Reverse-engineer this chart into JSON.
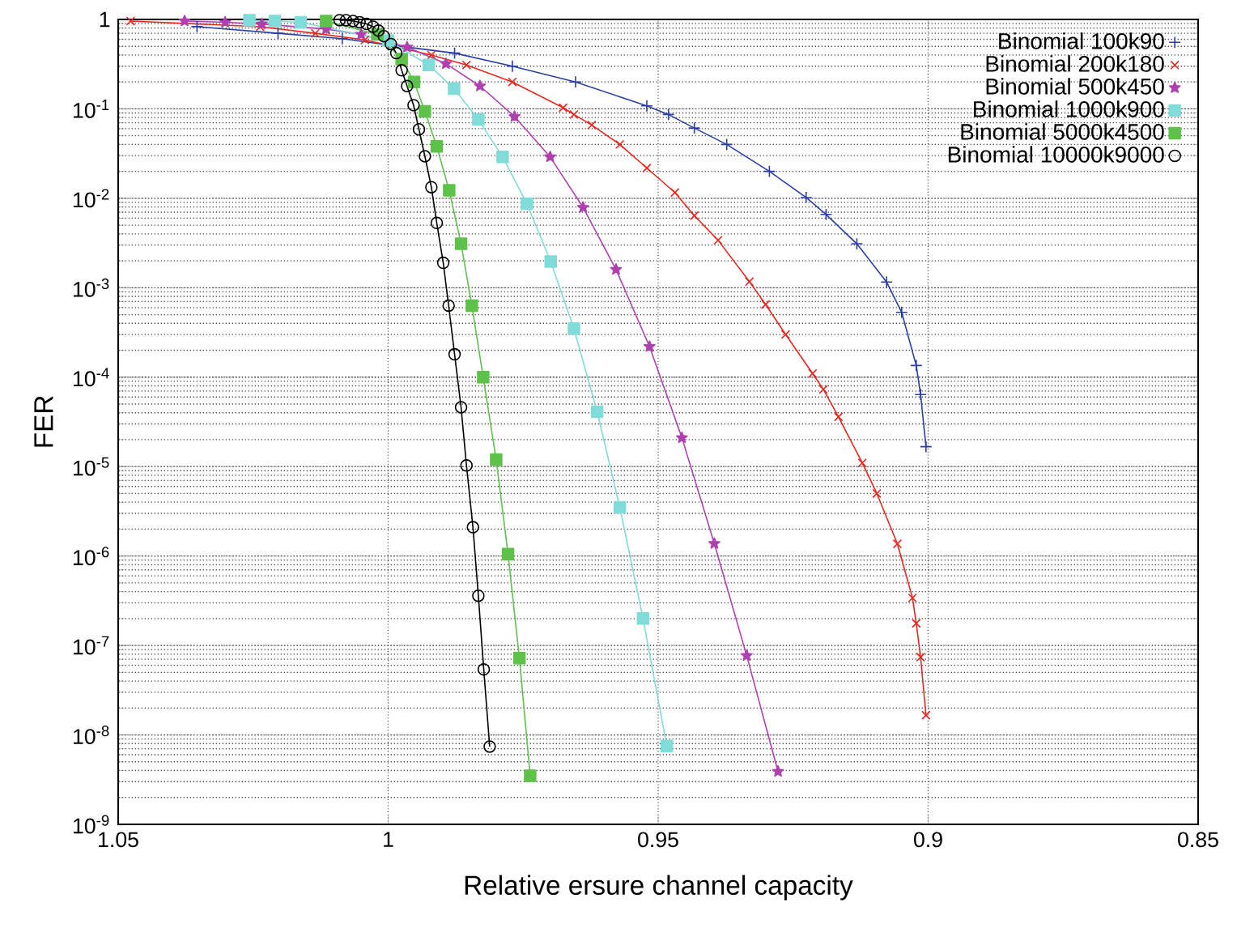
{
  "chart_data": {
    "type": "line",
    "xlabel": "Relative ersure channel capacity",
    "ylabel": "FER",
    "log": "y",
    "grid": true,
    "legend": "top right",
    "line_style": "solid",
    "xlim": [
      1.05,
      0.85
    ],
    "xticks": [
      1.05,
      1,
      0.95,
      0.9,
      0.85
    ],
    "ylim": [
      1e-09,
      1
    ],
    "yticks": [
      {
        "value": 1e-09,
        "label": "10$^{-9}$"
      },
      {
        "value": 1e-08,
        "label": "10$^{-8}$"
      },
      {
        "value": 1e-07,
        "label": "10$^{-7}$"
      },
      {
        "value": 1e-06,
        "label": "10$^{-6}$"
      },
      {
        "value": 1e-05,
        "label": "10$^{-5}$"
      },
      {
        "value": 0.0001,
        "label": "10$^{-4}$"
      },
      {
        "value": 0.001,
        "label": "10$^{-3}$"
      },
      {
        "value": 0.01,
        "label": "10$^{-2}$"
      },
      {
        "value": 0.1,
        "label": "10$^{-1}$"
      },
      1
    ],
    "series": [
      {
        "name": "Binomial 100k90",
        "color": "#2a3ea8",
        "marker": "plus",
        "x": [
          1.0354,
          1.0204,
          1.0085,
          1.0,
          0.9877,
          0.977,
          0.9653,
          0.9521,
          0.9481,
          0.9433,
          0.9373,
          0.9294,
          0.9226,
          0.9189,
          0.9132,
          0.9077,
          0.9049,
          0.9022,
          0.9014,
          0.9004
        ],
        "values": [
          0.83,
          0.7,
          0.61,
          0.52,
          0.42,
          0.3,
          0.2,
          0.108,
          0.0865,
          0.061,
          0.04,
          0.02,
          0.0102,
          0.0066,
          0.0031,
          0.00116,
          0.00053,
          0.000135,
          6.4e-05,
          1.67e-05
        ]
      },
      {
        "name": "Binomial 200k180",
        "color": "#e8271e",
        "marker": "cross",
        "x": [
          1.0477,
          1.0237,
          1.0135,
          1.0043,
          0.992,
          0.9855,
          0.977,
          0.9676,
          0.9656,
          0.9623,
          0.9571,
          0.9521,
          0.9469,
          0.9433,
          0.9389,
          0.9331,
          0.9301,
          0.9264,
          0.9214,
          0.9194,
          0.9166,
          0.9122,
          0.9095,
          0.9057,
          0.9029,
          0.9022,
          0.9014,
          0.9004
        ],
        "values": [
          0.96,
          0.83,
          0.7,
          0.59,
          0.4,
          0.31,
          0.2,
          0.103,
          0.0865,
          0.066,
          0.04,
          0.0218,
          0.0116,
          0.0064,
          0.0034,
          0.00117,
          0.00065,
          0.0003,
          0.00011,
          7.3e-05,
          3.6e-05,
          1.1e-05,
          5e-06,
          1.37e-06,
          3.4e-07,
          1.77e-07,
          7.4e-08,
          1.66e-08
        ]
      },
      {
        "name": "Binomial 500k450",
        "color": "#b040b0",
        "marker": "star",
        "x": [
          1.0377,
          1.0302,
          1.0234,
          1.0115,
          1.005,
          0.9965,
          0.9893,
          0.983,
          0.9766,
          0.97,
          0.9639,
          0.9578,
          0.9516,
          0.9456,
          0.9396,
          0.9336,
          0.9278
        ],
        "values": [
          0.96,
          0.93,
          0.89,
          0.78,
          0.68,
          0.49,
          0.32,
          0.18,
          0.082,
          0.029,
          0.0079,
          0.0016,
          0.00022,
          2.1e-05,
          1.38e-06,
          7.7e-08,
          3.9e-09
        ]
      },
      {
        "name": "Binomial 1000k900",
        "color": "#80dcd8",
        "marker": "square",
        "x": [
          1.0257,
          1.021,
          1.0162,
          1.0,
          0.9925,
          0.9878,
          0.9833,
          0.9788,
          0.9743,
          0.9699,
          0.9656,
          0.9613,
          0.9571,
          0.9528,
          0.9484
        ],
        "values": [
          0.98,
          0.96,
          0.93,
          0.58,
          0.31,
          0.168,
          0.076,
          0.029,
          0.0087,
          0.00196,
          0.00035,
          4.1e-05,
          3.5e-06,
          2e-07,
          7.5e-09
        ]
      },
      {
        "name": "Binomial 5000k4500",
        "color": "#5ec24a",
        "marker": "square",
        "x": [
          1.0115,
          1.002,
          0.9975,
          0.9952,
          0.9932,
          0.991,
          0.9887,
          0.9865,
          0.9845,
          0.9824,
          0.98,
          0.9778,
          0.9757,
          0.9737
        ],
        "values": [
          0.96,
          0.68,
          0.36,
          0.2,
          0.094,
          0.038,
          0.0123,
          0.0031,
          0.00063,
          0.0001,
          1.2e-05,
          1.05e-06,
          7.2e-08,
          3.5e-09
        ]
      },
      {
        "name": "Binomial 10000k9000",
        "color": "#000000",
        "marker": "circle",
        "x": [
          1.009,
          1.0078,
          1.0065,
          1.0053,
          1.004,
          1.0028,
          1.0018,
          1.0008,
          0.9995,
          0.9985,
          0.9975,
          0.9965,
          0.9953,
          0.9943,
          0.9932,
          0.992,
          0.991,
          0.9898,
          0.9888,
          0.9877,
          0.9865,
          0.9855,
          0.9843,
          0.9833,
          0.9823,
          0.9812
        ],
        "values": [
          0.98,
          0.98,
          0.96,
          0.93,
          0.89,
          0.83,
          0.75,
          0.65,
          0.53,
          0.42,
          0.27,
          0.18,
          0.11,
          0.059,
          0.0295,
          0.0133,
          0.0053,
          0.0019,
          0.00063,
          0.00018,
          4.6e-05,
          1.03e-05,
          2.1e-06,
          3.6e-07,
          5.4e-08,
          7.4e-09
        ]
      }
    ]
  }
}
